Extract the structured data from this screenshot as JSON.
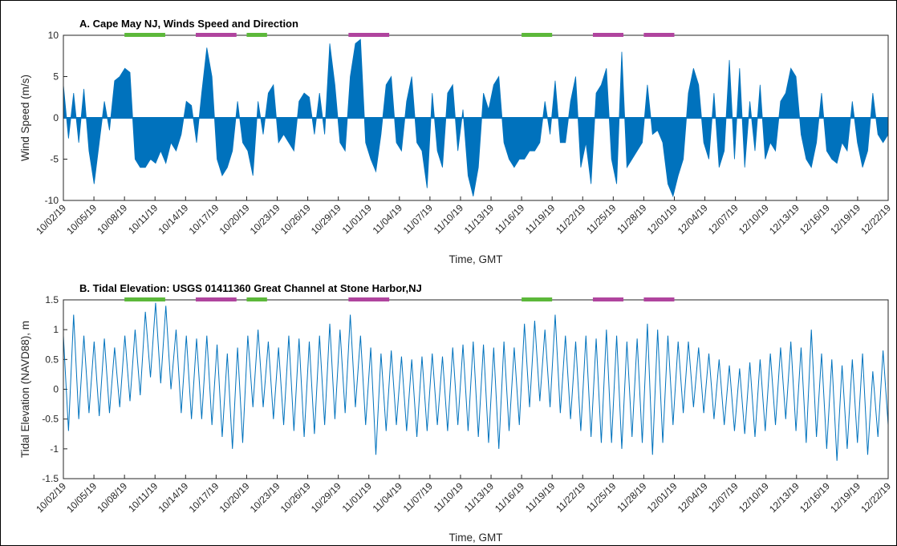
{
  "chart_data": [
    {
      "type": "area",
      "title": "A. Cape May NJ, Winds Speed and Direction",
      "xlabel": "Time, GMT",
      "ylabel": "Wind Speed (m/s)",
      "xlim": [
        "10/02/19",
        "12/22/19"
      ],
      "xticks": [
        "10/02/19",
        "10/05/19",
        "10/08/19",
        "10/11/19",
        "10/14/19",
        "10/17/19",
        "10/20/19",
        "10/23/19",
        "10/26/19",
        "10/29/19",
        "11/01/19",
        "11/04/19",
        "11/07/19",
        "11/10/19",
        "11/13/19",
        "11/16/19",
        "11/19/19",
        "11/22/19",
        "11/25/19",
        "11/28/19",
        "12/01/19",
        "12/04/19",
        "12/07/19",
        "12/10/19",
        "12/13/19",
        "12/16/19",
        "12/19/19",
        "12/22/19"
      ],
      "ylim": [
        -10,
        10
      ],
      "yticks": [
        -10,
        -5,
        0,
        5,
        10
      ],
      "periods": [
        {
          "start": "10/08/19",
          "end": "10/12/19",
          "color": "#5cb83a"
        },
        {
          "start": "10/15/19",
          "end": "10/19/19",
          "color": "#b0449e"
        },
        {
          "start": "10/20/19",
          "end": "10/22/19",
          "color": "#5cb83a"
        },
        {
          "start": "10/30/19",
          "end": "11/03/19",
          "color": "#b0449e"
        },
        {
          "start": "11/16/19",
          "end": "11/19/19",
          "color": "#5cb83a"
        },
        {
          "start": "11/23/19",
          "end": "11/26/19",
          "color": "#b0449e"
        },
        {
          "start": "11/28/19",
          "end": "12/01/19",
          "color": "#b0449e"
        }
      ],
      "series": [
        {
          "color": "#0072bd",
          "values": [
            4,
            -2.5,
            3,
            -3,
            3.5,
            -4,
            -8,
            -3,
            2,
            -1.5,
            4.5,
            5,
            6,
            5.5,
            -5,
            -6,
            -6,
            -5,
            -5.5,
            -4,
            -5.5,
            -3,
            -4,
            -2,
            2,
            1.5,
            -3,
            3,
            8.5,
            5,
            -5,
            -7,
            -6,
            -4,
            2,
            -3,
            -4,
            -7,
            2,
            -2,
            3,
            4,
            -3,
            -2,
            -3,
            -4,
            2,
            3,
            2.5,
            -2,
            3,
            -2,
            9,
            4,
            -3,
            -4,
            5,
            9,
            9.5,
            -3,
            -5,
            -6.5,
            -2,
            4,
            5,
            -3,
            -4,
            2,
            5,
            -3,
            -4,
            -8.5,
            3,
            -4,
            -6,
            3,
            4,
            -4,
            1,
            -7,
            -9.5,
            -6,
            3,
            1,
            4,
            5,
            -3,
            -5,
            -6,
            -5,
            -5,
            -4,
            -4,
            -3,
            2,
            -2,
            4.5,
            -3,
            -3,
            2,
            5,
            -6,
            -3,
            -8,
            3,
            4,
            6,
            -5,
            -8,
            8,
            -6,
            -5,
            -4,
            -3,
            4,
            -2,
            -1.5,
            -3,
            -8,
            -9.5,
            -7,
            -5,
            3,
            6,
            4,
            -3,
            -5,
            3,
            -6,
            -4,
            7,
            -5,
            6,
            -6,
            2,
            -4,
            4,
            -5,
            -3,
            -4,
            2,
            3,
            6,
            5,
            -2,
            -5,
            -6,
            -3,
            3,
            -4,
            -5,
            -5.5,
            -3,
            -4,
            2,
            -3,
            -6,
            -4,
            3,
            -2,
            -3,
            -2
          ]
        }
      ]
    },
    {
      "type": "line",
      "title": "B. Tidal Elevation: USGS 01411360 Great Channel at Stone Harbor,NJ",
      "xlabel": "Time, GMT",
      "ylabel": "Tidal Elevation (NAVD88), m",
      "xlim": [
        "10/02/19",
        "12/22/19"
      ],
      "xticks": [
        "10/02/19",
        "10/05/19",
        "10/08/19",
        "10/11/19",
        "10/14/19",
        "10/17/19",
        "10/20/19",
        "10/23/19",
        "10/26/19",
        "10/29/19",
        "11/01/19",
        "11/04/19",
        "11/07/19",
        "11/10/19",
        "11/13/19",
        "11/16/19",
        "11/19/19",
        "11/22/19",
        "11/25/19",
        "11/28/19",
        "12/01/19",
        "12/04/19",
        "12/07/19",
        "12/10/19",
        "12/13/19",
        "12/16/19",
        "12/19/19",
        "12/22/19"
      ],
      "ylim": [
        -1.5,
        1.5
      ],
      "yticks": [
        -1.5,
        -1,
        -0.5,
        0,
        0.5,
        1,
        1.5
      ],
      "periods": [
        {
          "start": "10/08/19",
          "end": "10/12/19",
          "color": "#5cb83a"
        },
        {
          "start": "10/15/19",
          "end": "10/19/19",
          "color": "#b0449e"
        },
        {
          "start": "10/20/19",
          "end": "10/22/19",
          "color": "#5cb83a"
        },
        {
          "start": "10/30/19",
          "end": "11/03/19",
          "color": "#b0449e"
        },
        {
          "start": "11/16/19",
          "end": "11/19/19",
          "color": "#5cb83a"
        },
        {
          "start": "11/23/19",
          "end": "11/26/19",
          "color": "#b0449e"
        },
        {
          "start": "11/28/19",
          "end": "12/01/19",
          "color": "#b0449e"
        }
      ],
      "series": [
        {
          "color": "#0072bd",
          "values": [
            0.9,
            -0.7,
            1.25,
            -0.5,
            0.9,
            -0.4,
            0.8,
            -0.45,
            0.85,
            -0.4,
            0.7,
            -0.3,
            0.9,
            -0.2,
            1.0,
            -0.1,
            1.3,
            0.2,
            1.45,
            0.1,
            1.4,
            0.0,
            1.0,
            -0.4,
            0.9,
            -0.5,
            0.85,
            -0.5,
            0.9,
            -0.6,
            0.75,
            -0.8,
            0.6,
            -1.0,
            0.7,
            -0.9,
            0.9,
            -0.3,
            1.0,
            -0.3,
            0.8,
            -0.5,
            0.7,
            -0.6,
            0.9,
            -0.7,
            0.85,
            -0.8,
            0.8,
            -0.75,
            0.9,
            -0.6,
            1.1,
            -0.5,
            1.0,
            -0.4,
            1.25,
            -0.3,
            0.9,
            -0.6,
            0.7,
            -1.1,
            0.6,
            -0.7,
            0.65,
            -0.6,
            0.55,
            -0.7,
            0.5,
            -0.8,
            0.55,
            -0.7,
            0.6,
            -0.6,
            0.55,
            -0.7,
            0.7,
            -0.6,
            0.75,
            -0.7,
            0.8,
            -0.8,
            0.75,
            -0.9,
            0.7,
            -1.0,
            0.8,
            -0.7,
            0.7,
            -0.6,
            1.1,
            -0.3,
            1.15,
            -0.2,
            1.0,
            -0.3,
            1.25,
            -0.4,
            0.9,
            -0.5,
            0.8,
            -0.7,
            0.9,
            -0.8,
            0.85,
            -0.9,
            1.0,
            -0.9,
            0.9,
            -1.0,
            0.8,
            -0.8,
            0.85,
            -0.9,
            1.1,
            -1.1,
            1.0,
            -0.9,
            0.9,
            -0.6,
            0.8,
            -0.4,
            0.8,
            -0.3,
            0.7,
            -0.4,
            0.6,
            -0.5,
            0.5,
            -0.6,
            0.4,
            -0.7,
            0.35,
            -0.75,
            0.45,
            -0.8,
            0.5,
            -0.7,
            0.6,
            -0.6,
            0.7,
            -0.5,
            0.8,
            -0.7,
            0.7,
            -0.9,
            1.0,
            -0.8,
            0.6,
            -1.0,
            0.5,
            -1.2,
            0.4,
            -1.0,
            0.5,
            -0.9,
            0.6,
            -1.1,
            0.3,
            -0.8,
            0.65,
            -0.6
          ]
        }
      ]
    }
  ]
}
